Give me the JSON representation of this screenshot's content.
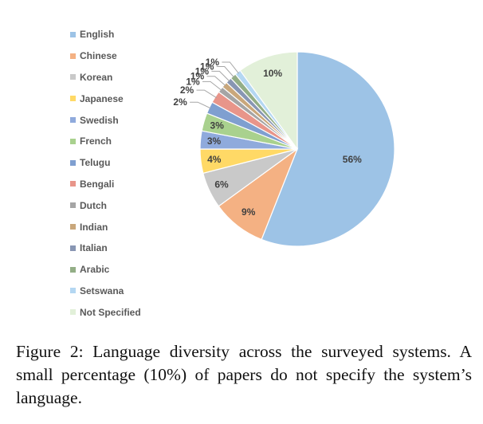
{
  "chart_data": {
    "type": "pie",
    "categories": [
      "English",
      "Chinese",
      "Korean",
      "Japanese",
      "Swedish",
      "French",
      "Telugu",
      "Bengali",
      "Dutch",
      "Indian",
      "Italian",
      "Arabic",
      "Setswana",
      "Not Specified"
    ],
    "values": [
      56,
      9,
      6,
      4,
      3,
      3,
      2,
      2,
      1,
      1,
      1,
      1,
      1,
      10
    ],
    "labels": [
      "56%",
      "9%",
      "6%",
      "4%",
      "3%",
      "3%",
      "2%",
      "2%",
      "1%",
      "1%",
      "1%",
      "1%",
      "1%",
      "10%"
    ],
    "colors": [
      "#9dc3e6",
      "#f4b183",
      "#c9c9c9",
      "#ffd966",
      "#8faadc",
      "#a9d18e",
      "#7f9fd0",
      "#e8958a",
      "#a5a5a5",
      "#c9a77b",
      "#8896b3",
      "#93ae86",
      "#b4d7f2",
      "#e2f0d9"
    ],
    "legend_position": "left",
    "title": "",
    "xlabel": "",
    "ylabel": ""
  },
  "caption": {
    "text": "Figure 2: Language diversity across the surveyed systems. A small percentage (10%) of papers do not specify the system’s language."
  }
}
